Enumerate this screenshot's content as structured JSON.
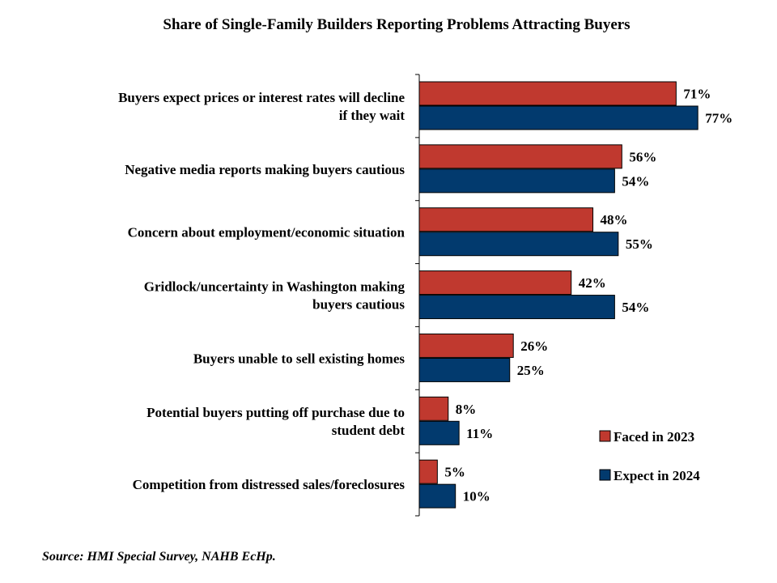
{
  "chart_data": {
    "type": "bar",
    "orientation": "horizontal",
    "title": "Share of Single-Family Builders Reporting Problems Attracting Buyers",
    "categories": [
      [
        "Buyers expect prices or interest rates will decline",
        "if they wait"
      ],
      [
        "Negative media reports making buyers cautious"
      ],
      [
        "Concern about employment/economic situation"
      ],
      [
        "Gridlock/uncertainty in Washington making",
        "buyers cautious"
      ],
      [
        "Buyers unable to sell existing homes"
      ],
      [
        "Potential buyers putting off purchase due to",
        "student debt"
      ],
      [
        "Competition from distressed sales/foreclosures"
      ]
    ],
    "series": [
      {
        "name": "Faced in 2023",
        "color": "#C0392F",
        "values": [
          71,
          56,
          48,
          42,
          26,
          8,
          5
        ],
        "labels": [
          "71%",
          "56%",
          "48%",
          "42%",
          "26%",
          "8%",
          "5%"
        ]
      },
      {
        "name": "Expect in 2024",
        "color": "#023A6E",
        "values": [
          77,
          54,
          55,
          54,
          25,
          11,
          10
        ],
        "labels": [
          "77%",
          "54%",
          "55%",
          "54%",
          "25%",
          "11%",
          "10%"
        ]
      }
    ],
    "unit": "%",
    "grid": false,
    "legend_position": "bottom-right",
    "source": "Source: HMI Special Survey, NAHB EcHp."
  }
}
